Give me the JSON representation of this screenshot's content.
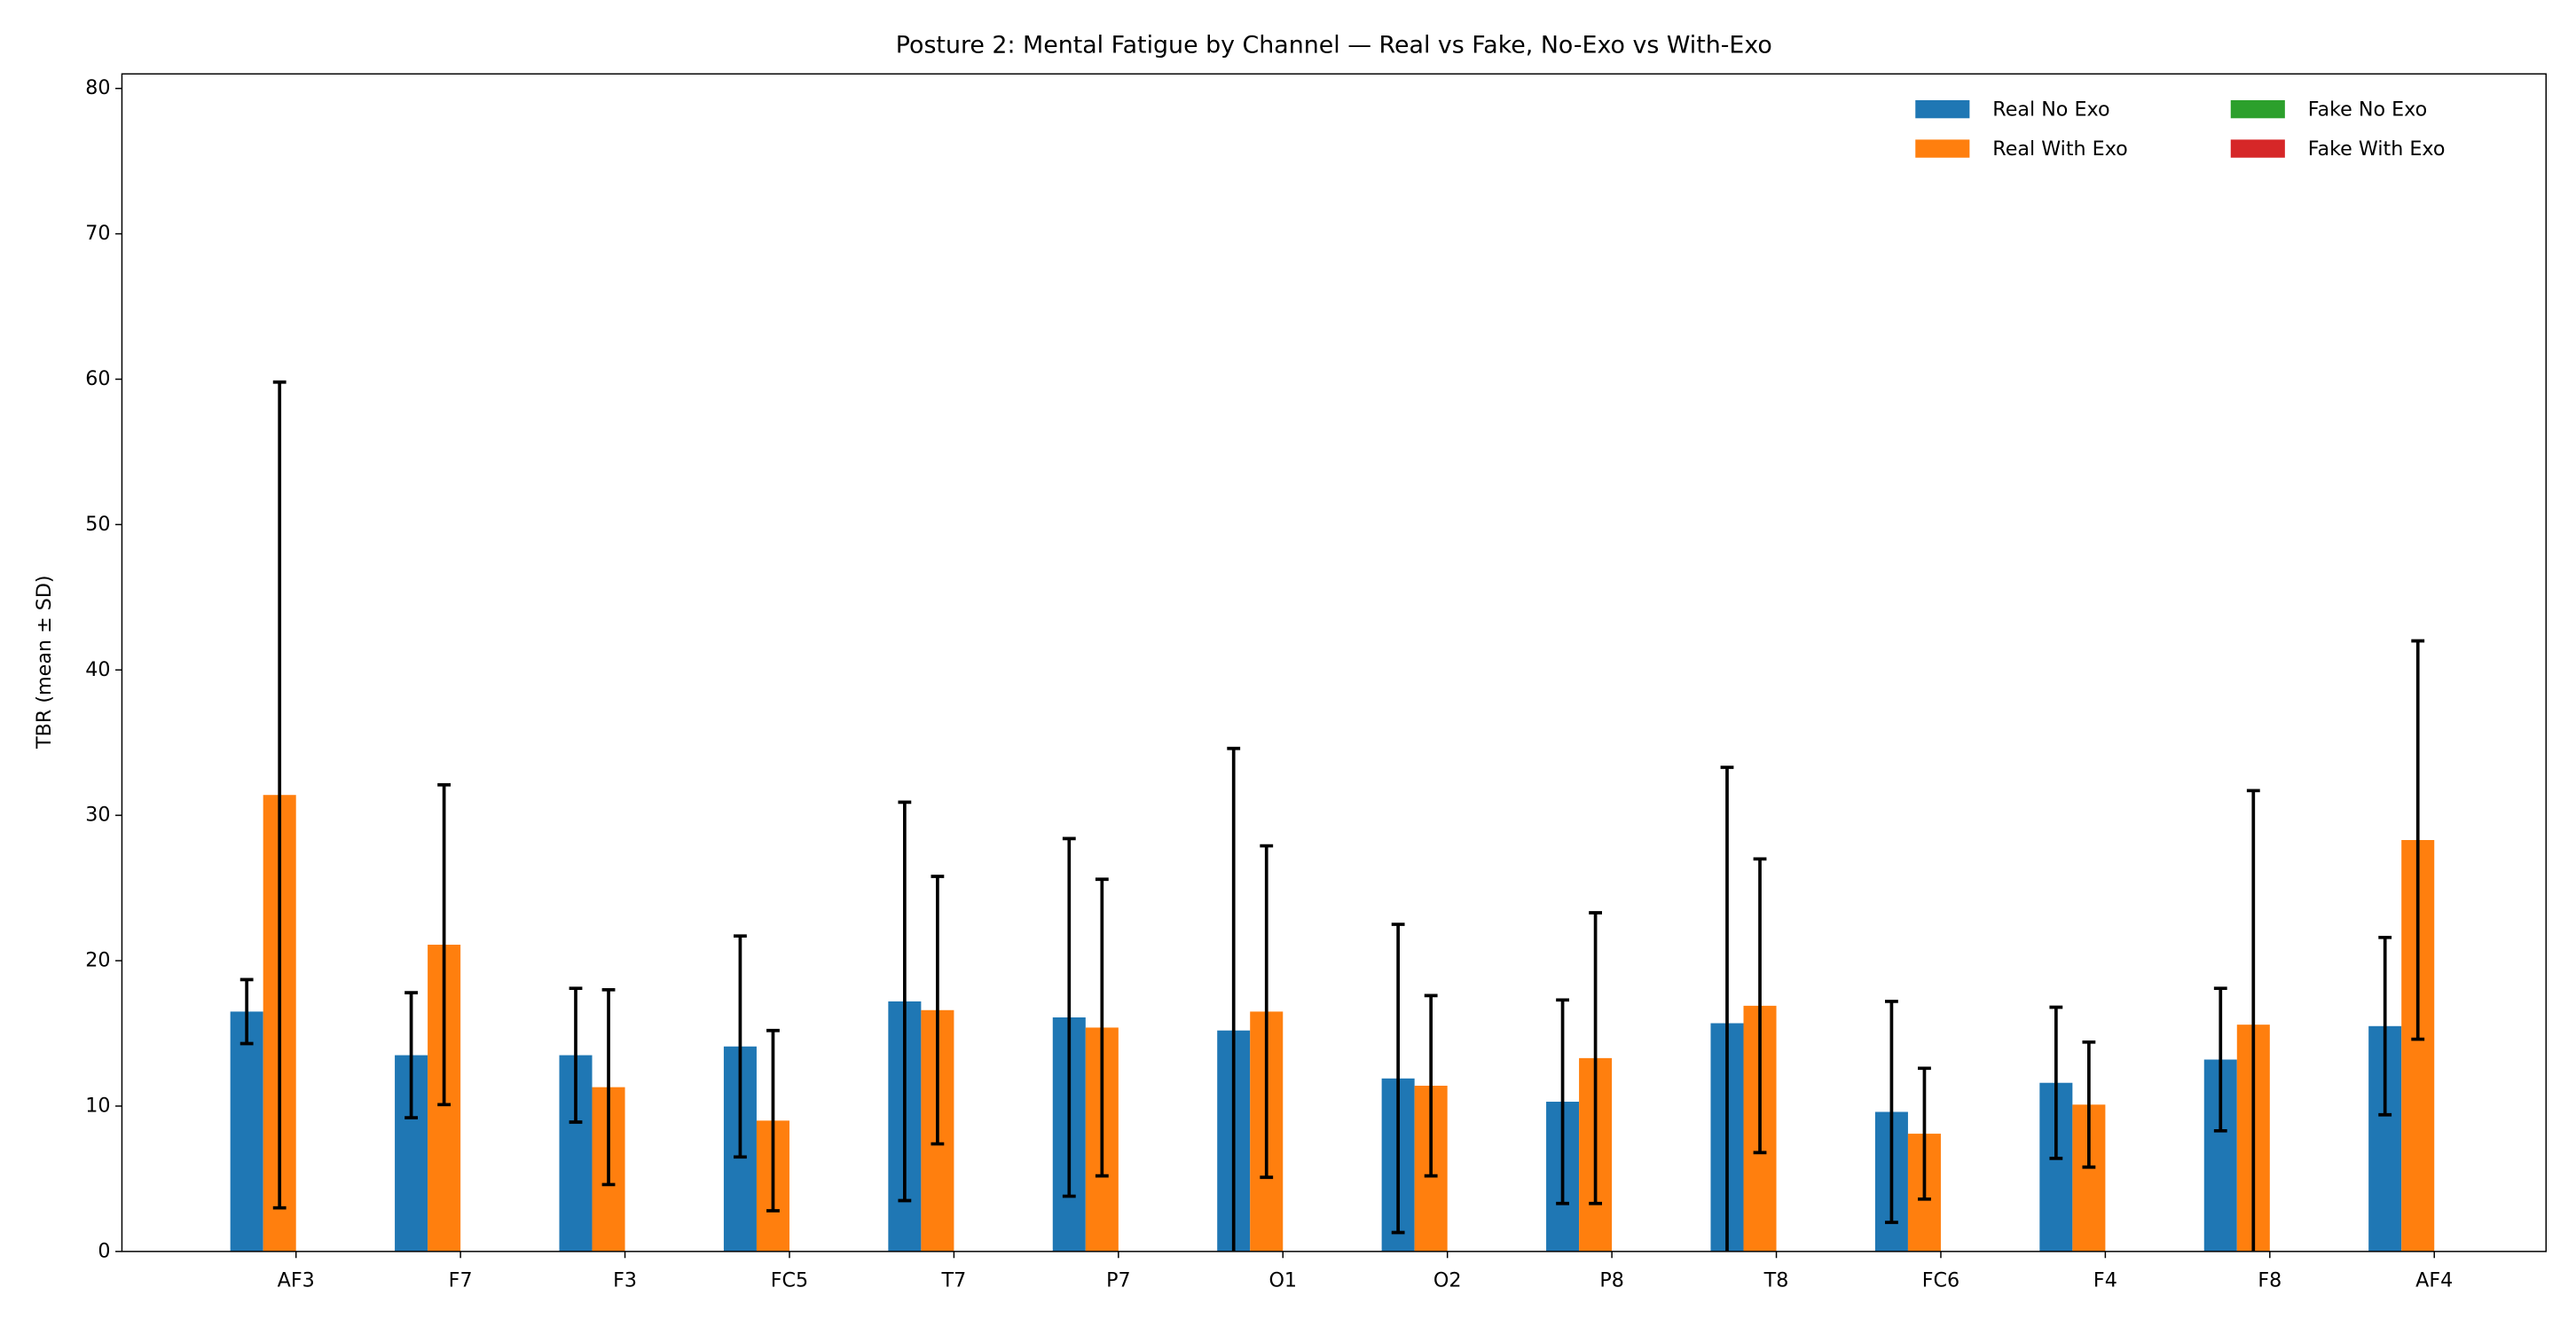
{
  "chart_data": {
    "type": "bar",
    "title": "Posture 2: Mental Fatigue by Channel — Real vs Fake, No-Exo vs With-Exo",
    "y_label": "TBR (mean ± SD)",
    "categories": [
      "AF3",
      "F7",
      "F3",
      "FC5",
      "T7",
      "P7",
      "O1",
      "O2",
      "P8",
      "T8",
      "FC6",
      "F4",
      "F8",
      "AF4"
    ],
    "series": [
      {
        "name": "Real No Exo",
        "color": "#1f77b4",
        "values": [
          16.5,
          13.5,
          13.5,
          14.1,
          17.2,
          16.1,
          15.2,
          11.9,
          10.3,
          15.7,
          9.6,
          11.6,
          13.2,
          15.5
        ],
        "errors": [
          2.2,
          4.3,
          4.6,
          7.6,
          13.7,
          12.3,
          19.4,
          10.6,
          7.0,
          17.6,
          7.6,
          5.2,
          4.9,
          6.1
        ]
      },
      {
        "name": "Real With Exo",
        "color": "#ff7f0e",
        "values": [
          31.4,
          21.1,
          11.3,
          9.0,
          16.6,
          15.4,
          16.5,
          11.4,
          13.3,
          16.9,
          8.1,
          10.1,
          15.6,
          28.3
        ],
        "errors": [
          28.4,
          11.0,
          6.7,
          6.2,
          9.2,
          10.2,
          11.4,
          6.2,
          10.0,
          10.1,
          4.5,
          4.3,
          16.1,
          13.7
        ]
      },
      {
        "name": "Fake No Exo",
        "color": "#2ca02c",
        "values": [
          null,
          null,
          null,
          null,
          null,
          null,
          null,
          null,
          null,
          null,
          null,
          null,
          null,
          null
        ],
        "errors": [
          null,
          null,
          null,
          null,
          null,
          null,
          null,
          null,
          null,
          null,
          null,
          null,
          null,
          null
        ]
      },
      {
        "name": "Fake With Exo",
        "color": "#d62728",
        "values": [
          null,
          null,
          null,
          null,
          null,
          null,
          null,
          null,
          null,
          null,
          null,
          null,
          null,
          null
        ],
        "errors": [
          null,
          null,
          null,
          null,
          null,
          null,
          null,
          null,
          null,
          null,
          null,
          null,
          null,
          null
        ]
      }
    ],
    "ylim": [
      0,
      81
    ],
    "yticks": [
      0,
      10,
      20,
      30,
      40,
      50,
      60,
      70,
      80
    ],
    "grid": false,
    "legend": "upper right",
    "legend_columns": 2
  }
}
